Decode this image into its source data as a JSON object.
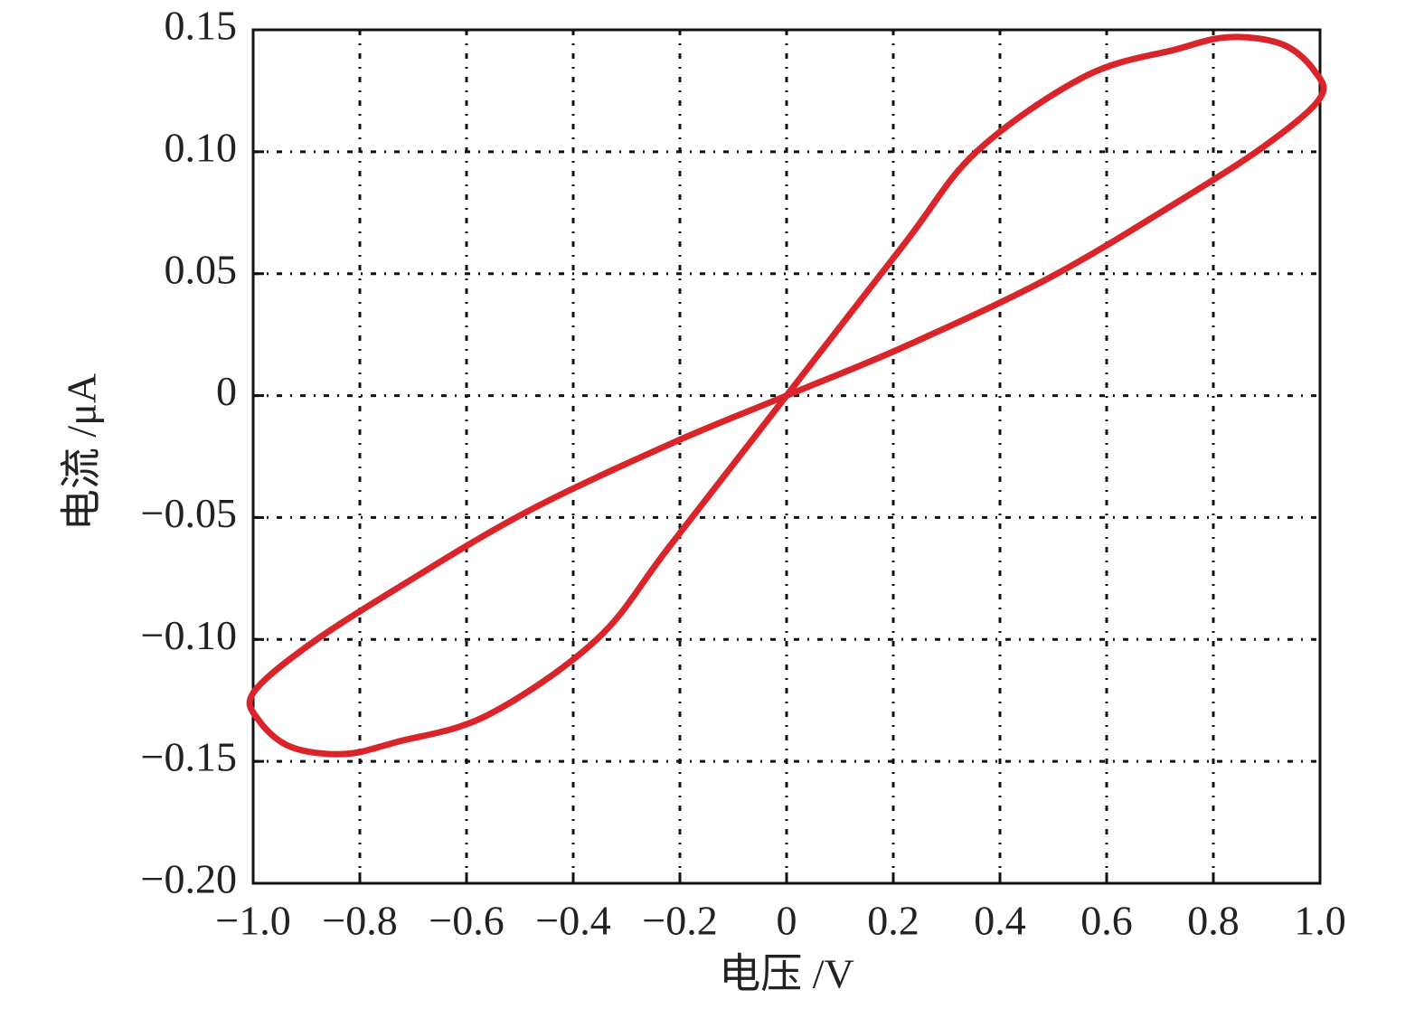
{
  "chart_data": {
    "type": "line",
    "x_label": "电压 /V",
    "y_label": "电流 /μA",
    "series": [
      {
        "color": "#d9252a",
        "x": [
          0,
          0.22,
          0.356,
          0.56,
          0.73,
          0.83,
          0.93,
          0.99,
          1.0,
          0.9,
          0.73,
          0.49,
          0.22,
          0,
          -0.22,
          -0.49,
          -0.73,
          -0.9,
          -1.0,
          -0.99,
          -0.93,
          -0.83,
          -0.73,
          -0.56,
          -0.356,
          -0.22,
          0
        ],
        "values": [
          0,
          0.062,
          0.1,
          0.131,
          0.142,
          0.147,
          0.144,
          0.133,
          0.122,
          0.103,
          0.079,
          0.048,
          0.02,
          0,
          -0.02,
          -0.048,
          -0.079,
          -0.103,
          -0.122,
          -0.133,
          -0.144,
          -0.147,
          -0.142,
          -0.131,
          -0.1,
          -0.062,
          0
        ]
      }
    ],
    "xlim": [
      -1,
      1
    ],
    "ylim": [
      -0.2,
      0.15
    ],
    "xticks": [
      {
        "value": -1,
        "label": "−1.0"
      },
      {
        "value": -0.8,
        "label": "−0.8"
      },
      {
        "value": -0.6,
        "label": "−0.6"
      },
      {
        "value": -0.4,
        "label": "−0.4"
      },
      {
        "value": -0.2,
        "label": "−0.2"
      },
      0,
      0.2,
      0.4,
      0.6,
      0.8,
      {
        "value": 1,
        "label": "1.0"
      }
    ],
    "yticks": [
      {
        "value": -0.2,
        "label": "−0.20"
      },
      {
        "value": -0.15,
        "label": "−0.15"
      },
      {
        "value": -0.1,
        "label": "−0.10"
      },
      {
        "value": -0.05,
        "label": "−0.05"
      },
      0,
      0.05,
      {
        "value": 0.1,
        "label": "0.10"
      },
      0.15
    ],
    "grid": true
  }
}
